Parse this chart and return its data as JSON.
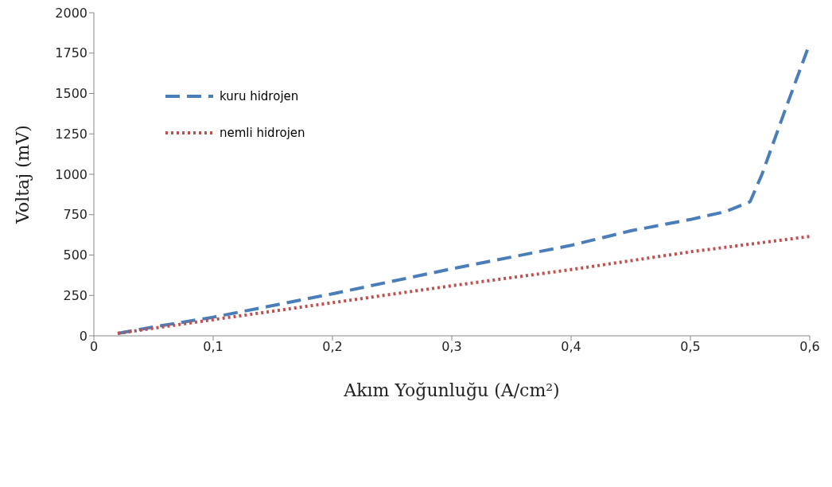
{
  "chart_data": {
    "type": "line",
    "xlabel": "Akım Yoğunluğu (A/cm²)",
    "ylabel": "Voltaj (mV)",
    "xlim": [
      0,
      0.6
    ],
    "xticks": [
      0,
      {
        "value": 0.1,
        "label": "0,1"
      },
      {
        "value": 0.2,
        "label": "0,2"
      },
      {
        "value": 0.3,
        "label": "0,3"
      },
      {
        "value": 0.4,
        "label": "0,4"
      },
      {
        "value": 0.5,
        "label": "0,5"
      },
      {
        "value": 0.6,
        "label": "0,6"
      }
    ],
    "ylim": [
      0,
      2000
    ],
    "yticks": [
      0,
      250,
      500,
      750,
      1000,
      1250,
      1500,
      1750,
      2000
    ],
    "grid": false,
    "legend": "top left",
    "marker": "none",
    "series": [
      {
        "name": "kuru hidrojen",
        "color": "#4a7ebb",
        "line_style": "dashed",
        "x": [
          0.02,
          0.05,
          0.1,
          0.2,
          0.3,
          0.4,
          0.45,
          0.5,
          0.53,
          0.55,
          0.56,
          0.58,
          0.6
        ],
        "values": [
          15,
          55,
          115,
          260,
          415,
          560,
          650,
          720,
          770,
          830,
          1000,
          1410,
          1810
        ]
      },
      {
        "name": "nemli hidrojen",
        "color": "#c0504d",
        "line_style": "dotted",
        "x": [
          0.02,
          0.1,
          0.2,
          0.3,
          0.4,
          0.5,
          0.6
        ],
        "values": [
          15,
          100,
          205,
          310,
          410,
          520,
          615
        ]
      }
    ]
  }
}
